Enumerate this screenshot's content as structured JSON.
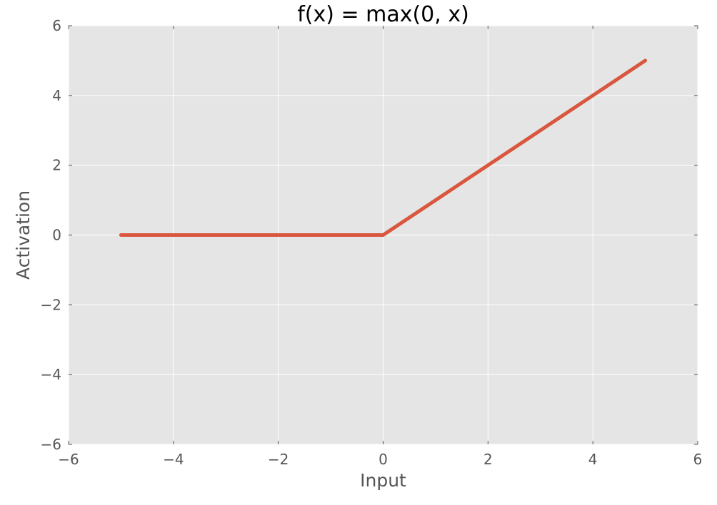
{
  "chart_data": {
    "type": "line",
    "title": "f(x) = max(0, x)",
    "xlabel": "Input",
    "ylabel": "Activation",
    "xlim": [
      -6,
      6
    ],
    "ylim": [
      -6,
      6
    ],
    "x_ticks": [
      -6,
      -4,
      -2,
      0,
      2,
      4,
      6
    ],
    "y_ticks": [
      -6,
      -4,
      -2,
      0,
      2,
      4,
      6
    ],
    "x_tick_labels": [
      "−6",
      "−4",
      "−2",
      "0",
      "2",
      "4",
      "6"
    ],
    "y_tick_labels": [
      "−6",
      "−4",
      "−2",
      "0",
      "2",
      "4",
      "6"
    ],
    "grid": true,
    "series": [
      {
        "x": [
          -5,
          0,
          5
        ],
        "y": [
          0,
          0,
          5
        ],
        "color": "#d9573f"
      }
    ],
    "colors": {
      "plot_background": "#e5e5e5",
      "grid": "#ffffff",
      "line": "#d9573f",
      "tick_text": "#555555",
      "title_text": "#000000"
    }
  }
}
